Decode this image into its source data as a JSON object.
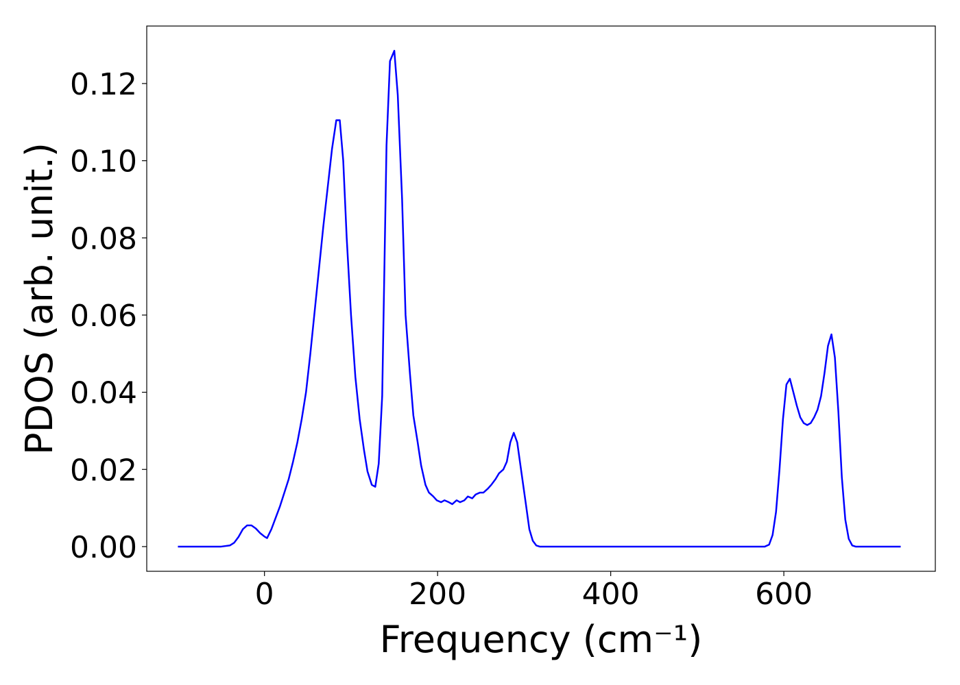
{
  "chart_data": {
    "type": "line",
    "x_label": "Frequency (cm⁻¹)",
    "y_label": "PDOS (arb. unit.)",
    "x": [
      -100,
      -50,
      -40,
      -35,
      -30,
      -25,
      -20,
      -15,
      -10,
      -5,
      0,
      3,
      8,
      13,
      18,
      23,
      28,
      33,
      38,
      43,
      48,
      53,
      58,
      63,
      68,
      73,
      78,
      83,
      87,
      91,
      95,
      100,
      105,
      110,
      115,
      119,
      124,
      128,
      132,
      136,
      141,
      145,
      150,
      154,
      159,
      163,
      168,
      172,
      177,
      181,
      186,
      190,
      195,
      199,
      204,
      208,
      213,
      217,
      222,
      226,
      231,
      235,
      240,
      244,
      249,
      253,
      258,
      262,
      267,
      271,
      276,
      280,
      284,
      288,
      292,
      297,
      302,
      306,
      310,
      314,
      318,
      322,
      326,
      331,
      400,
      500,
      578,
      583,
      587,
      591,
      595,
      599,
      603,
      607,
      611,
      615,
      619,
      623,
      627,
      631,
      635,
      639,
      643,
      647,
      651,
      655,
      659,
      663,
      667,
      671,
      675,
      679,
      683,
      735
    ],
    "series": [
      {
        "color": "#0000ff",
        "values": [
          0,
          0,
          0.0003,
          0.001,
          0.0025,
          0.0045,
          0.0055,
          0.0055,
          0.0047,
          0.0035,
          0.0026,
          0.0022,
          0.0045,
          0.0075,
          0.0105,
          0.014,
          0.0175,
          0.022,
          0.027,
          0.033,
          0.04,
          0.05,
          0.061,
          0.072,
          0.083,
          0.093,
          0.103,
          0.1105,
          0.1105,
          0.1,
          0.08,
          0.06,
          0.044,
          0.033,
          0.025,
          0.0195,
          0.016,
          0.0155,
          0.0215,
          0.039,
          0.104,
          0.1258,
          0.1285,
          0.117,
          0.09,
          0.06,
          0.045,
          0.034,
          0.027,
          0.021,
          0.016,
          0.014,
          0.013,
          0.012,
          0.0115,
          0.012,
          0.0115,
          0.011,
          0.012,
          0.0115,
          0.012,
          0.013,
          0.0125,
          0.0135,
          0.014,
          0.014,
          0.015,
          0.016,
          0.0175,
          0.019,
          0.02,
          0.022,
          0.027,
          0.0295,
          0.027,
          0.019,
          0.011,
          0.0045,
          0.0015,
          0.0003,
          0,
          0,
          0,
          0,
          0,
          0,
          0,
          0.0005,
          0.003,
          0.009,
          0.02,
          0.033,
          0.042,
          0.0435,
          0.04,
          0.0365,
          0.0335,
          0.032,
          0.0315,
          0.032,
          0.0335,
          0.0355,
          0.039,
          0.045,
          0.052,
          0.055,
          0.049,
          0.035,
          0.018,
          0.007,
          0.002,
          0.0003,
          0,
          0
        ]
      }
    ],
    "xlim": [
      -136,
      775
    ],
    "xticks": [
      0,
      200,
      400,
      600
    ],
    "ylim": [
      -0.0064,
      0.1349
    ],
    "yticks": [
      {
        "value": 0,
        "label": "0.00"
      },
      0.02,
      0.04,
      0.06,
      0.08,
      {
        "value": 0.1,
        "label": "0.10"
      },
      0.12
    ],
    "grid": false
  }
}
